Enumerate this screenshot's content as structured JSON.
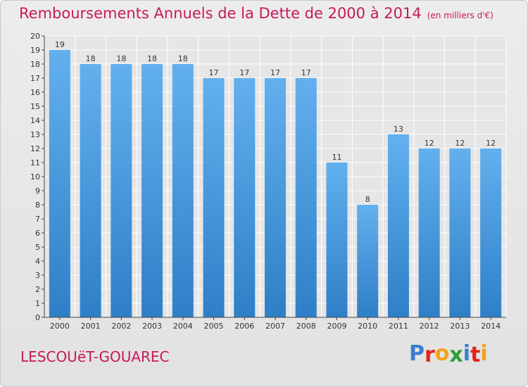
{
  "header": {
    "title": "Remboursements Annuels de la Dette de 2000 à 2014",
    "unit": "(en milliers d'€)"
  },
  "footer": {
    "commune": "LESCOUëT-GOUAREC",
    "logo_letters": [
      {
        "ch": "P",
        "color": "#3b7fd1"
      },
      {
        "ch": "r",
        "color": "#e1261c"
      },
      {
        "ch": "o",
        "color": "#f2a21b"
      },
      {
        "ch": "x",
        "color": "#2f9e3a"
      },
      {
        "ch": "i",
        "color": "#3b7fd1"
      },
      {
        "ch": "t",
        "color": "#e1261c"
      },
      {
        "ch": "i",
        "color": "#f2a21b"
      }
    ]
  },
  "chart_data": {
    "type": "bar",
    "title": "Remboursements Annuels de la Dette de 2000 à 2014",
    "subtitle": "(en milliers d'€)",
    "categories": [
      "2000",
      "2001",
      "2002",
      "2003",
      "2004",
      "2005",
      "2006",
      "2007",
      "2008",
      "2009",
      "2010",
      "2011",
      "2012",
      "2013",
      "2014"
    ],
    "values": [
      19,
      18,
      18,
      18,
      18,
      17,
      17,
      17,
      17,
      11,
      8,
      13,
      12,
      12,
      12
    ],
    "ylim": [
      0,
      20
    ],
    "yticks": [
      0,
      1,
      2,
      3,
      4,
      5,
      6,
      7,
      8,
      9,
      10,
      11,
      12,
      13,
      14,
      15,
      16,
      17,
      18,
      19,
      20
    ],
    "grid": true,
    "bar_color": "#4f9fe0"
  }
}
